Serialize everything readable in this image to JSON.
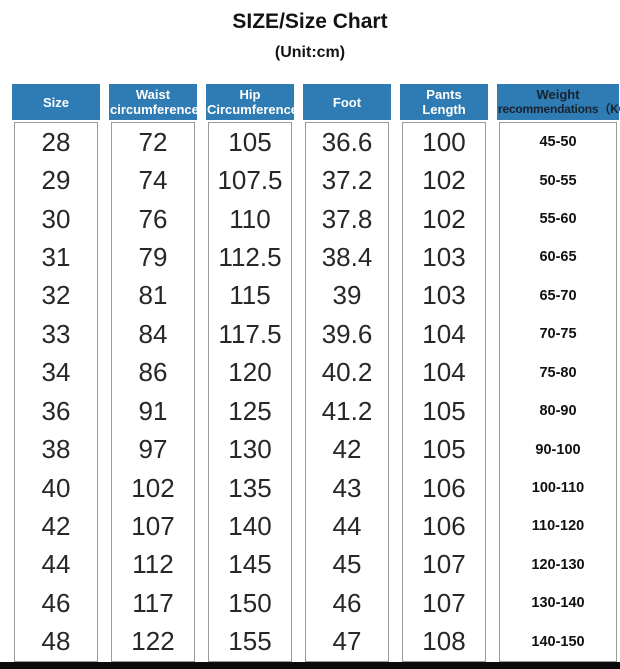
{
  "title": "SIZE/Size Chart",
  "subtitle": "(Unit:cm)",
  "colors": {
    "header_blue": "#2e7cb3",
    "header_text": "#ffffff",
    "weight_header_text": "#18222e",
    "border_gray": "#9b9b9b",
    "cell_text": "#272727",
    "weight_cell_text": "#111111",
    "bottom_bar": "#0b0b0b",
    "page_bg": "#ffffff"
  },
  "table": {
    "columns": [
      {
        "id": "size",
        "header_lines": [
          "Size"
        ]
      },
      {
        "id": "waist_circumference",
        "header_lines": [
          "Waist",
          "circumference"
        ]
      },
      {
        "id": "hip_circumference",
        "header_lines": [
          "Hip",
          "Circumference"
        ]
      },
      {
        "id": "foot",
        "header_lines": [
          "Foot"
        ]
      },
      {
        "id": "pants_length",
        "header_lines": [
          "Pants",
          "Length"
        ]
      },
      {
        "id": "weight_recommendations",
        "header_lines": [
          "Weight",
          "recommendations（KG）"
        ]
      }
    ]
  },
  "chart_data": {
    "type": "table",
    "title": "SIZE/Size Chart",
    "subtitle": "(Unit:cm)",
    "columns": [
      "Size",
      "Waist circumference",
      "Hip Circumference",
      "Foot",
      "Pants Length",
      "Weight recommendations（KG）"
    ],
    "rows": [
      [
        28,
        72,
        105,
        36.6,
        100,
        "45-50"
      ],
      [
        29,
        74,
        107.5,
        37.2,
        102,
        "50-55"
      ],
      [
        30,
        76,
        110,
        37.8,
        102,
        "55-60"
      ],
      [
        31,
        79,
        112.5,
        38.4,
        103,
        "60-65"
      ],
      [
        32,
        81,
        115,
        39,
        103,
        "65-70"
      ],
      [
        33,
        84,
        117.5,
        39.6,
        104,
        "70-75"
      ],
      [
        34,
        86,
        120,
        40.2,
        104,
        "75-80"
      ],
      [
        36,
        91,
        125,
        41.2,
        105,
        "80-90"
      ],
      [
        38,
        97,
        130,
        42,
        105,
        "90-100"
      ],
      [
        40,
        102,
        135,
        43,
        106,
        "100-110"
      ],
      [
        42,
        107,
        140,
        44,
        106,
        "110-120"
      ],
      [
        44,
        112,
        145,
        45,
        107,
        "120-130"
      ],
      [
        46,
        117,
        150,
        46,
        107,
        "130-140"
      ],
      [
        48,
        122,
        155,
        47,
        108,
        "140-150"
      ]
    ]
  }
}
